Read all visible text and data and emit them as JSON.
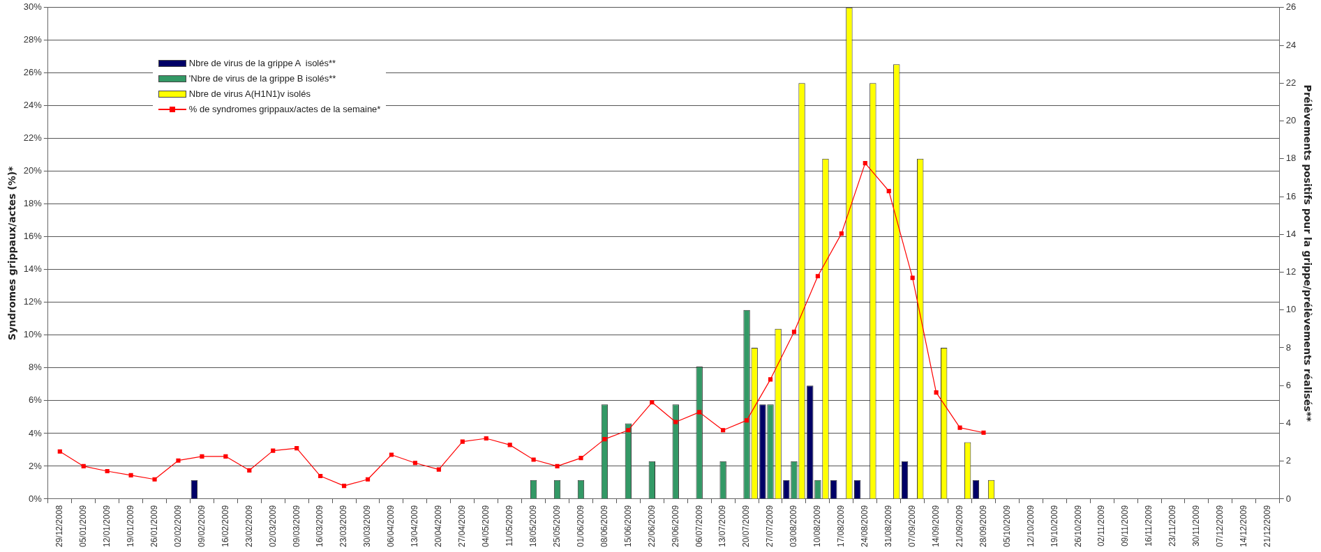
{
  "chart_data": {
    "type": "bar",
    "categories": [
      "29/12/2008",
      "05/01/2009",
      "12/01/2009",
      "19/01/2009",
      "26/01/2009",
      "02/02/2009",
      "09/02/2009",
      "16/02/2009",
      "23/02/2009",
      "02/03/2009",
      "09/03/2009",
      "16/03/2009",
      "23/03/2009",
      "30/03/2009",
      "06/04/2009",
      "13/04/2009",
      "20/04/2009",
      "27/04/2009",
      "04/05/2009",
      "11/05/2009",
      "18/05/2009",
      "25/05/2009",
      "01/06/2009",
      "08/06/2009",
      "15/06/2009",
      "22/06/2009",
      "29/06/2009",
      "06/07/2009",
      "13/07/2009",
      "20/07/2009",
      "27/07/2009",
      "03/08/2009",
      "10/08/2009",
      "17/08/2009",
      "24/08/2009",
      "31/08/2009",
      "07/09/2009",
      "14/09/2009",
      "21/09/2009",
      "28/09/2009",
      "05/10/2009",
      "12/10/2009",
      "19/10/2009",
      "26/10/2009",
      "02/11/2009",
      "09/11/2009",
      "16/11/2009",
      "23/11/2009",
      "30/11/2009",
      "07/12/2009",
      "14/12/2009",
      "21/12/2009"
    ],
    "series": [
      {
        "name": "Nbre de virus de la grippe A  isolés**",
        "color": "#000066",
        "axis": "y2",
        "values": [
          0,
          0,
          0,
          0,
          0,
          0,
          1,
          0,
          0,
          0,
          0,
          0,
          0,
          0,
          0,
          0,
          0,
          0,
          0,
          0,
          0,
          0,
          0,
          0,
          0,
          0,
          0,
          0,
          0,
          0,
          5,
          1,
          6,
          1,
          1,
          0,
          2,
          0,
          0,
          1,
          0,
          0,
          0,
          0,
          0,
          0,
          0,
          0,
          0,
          0,
          0,
          0
        ]
      },
      {
        "name": "'Nbre de virus de la grippe B isolés**",
        "color": "#339966",
        "axis": "y2",
        "values": [
          0,
          0,
          0,
          0,
          0,
          0,
          0,
          0,
          0,
          0,
          0,
          0,
          0,
          0,
          0,
          0,
          0,
          0,
          0,
          0,
          1,
          1,
          1,
          5,
          4,
          2,
          5,
          7,
          2,
          10,
          5,
          2,
          1,
          0,
          0,
          0,
          0,
          0,
          0,
          0,
          0,
          0,
          0,
          0,
          0,
          0,
          0,
          0,
          0,
          0,
          0,
          0
        ]
      },
      {
        "name": "Nbre de virus A(H1N1)v isolés",
        "color": "#ffff00",
        "axis": "y2",
        "values": [
          0,
          0,
          0,
          0,
          0,
          0,
          0,
          0,
          0,
          0,
          0,
          0,
          0,
          0,
          0,
          0,
          0,
          0,
          0,
          0,
          0,
          0,
          0,
          0,
          0,
          0,
          0,
          0,
          0,
          8,
          9,
          22,
          18,
          26,
          22,
          23,
          18,
          8,
          3,
          1,
          0,
          0,
          0,
          0,
          0,
          0,
          0,
          0,
          0,
          0,
          0,
          0
        ]
      },
      {
        "name": "% de syndromes grippaux/actes de la semaine*",
        "type": "line",
        "color": "#ff0000",
        "axis": "y",
        "values": [
          2.9,
          2.0,
          1.7,
          1.45,
          1.2,
          2.35,
          2.6,
          2.6,
          1.75,
          2.95,
          3.1,
          1.4,
          0.8,
          1.2,
          2.7,
          2.2,
          1.8,
          3.5,
          3.7,
          3.3,
          2.4,
          2.0,
          2.5,
          3.65,
          4.2,
          5.9,
          4.7,
          5.3,
          4.2,
          4.8,
          7.3,
          10.2,
          13.6,
          16.2,
          20.5,
          18.8,
          13.5,
          6.5,
          4.35,
          4.05,
          null,
          null,
          null,
          null,
          null,
          null,
          null,
          null,
          null,
          null,
          null,
          null
        ]
      }
    ],
    "ylabel": "Syndromes grippaux/actes (%)*",
    "y2label": "Prélèvements positifs pour la grippe/prélèvements réalisés**",
    "ylim": [
      0,
      30
    ],
    "yticks": [
      {
        "value": 0,
        "label": "0%"
      },
      {
        "value": 2,
        "label": "2%"
      },
      {
        "value": 4,
        "label": "4%"
      },
      {
        "value": 6,
        "label": "6%"
      },
      {
        "value": 8,
        "label": "8%"
      },
      {
        "value": 10,
        "label": "10%"
      },
      {
        "value": 12,
        "label": "12%"
      },
      {
        "value": 14,
        "label": "14%"
      },
      {
        "value": 16,
        "label": "16%"
      },
      {
        "value": 18,
        "label": "18%"
      },
      {
        "value": 20,
        "label": "20%"
      },
      {
        "value": 22,
        "label": "22%"
      },
      {
        "value": 24,
        "label": "24%"
      },
      {
        "value": 26,
        "label": "26%"
      },
      {
        "value": 28,
        "label": "28%"
      },
      {
        "value": 30,
        "label": "30%"
      }
    ],
    "y2lim": [
      0,
      26
    ],
    "y2ticks": [
      0,
      2,
      4,
      6,
      8,
      10,
      12,
      14,
      16,
      18,
      20,
      22,
      24,
      26
    ],
    "grid": "y",
    "legend": "top left",
    "marker": "square",
    "line_style": "solid"
  }
}
